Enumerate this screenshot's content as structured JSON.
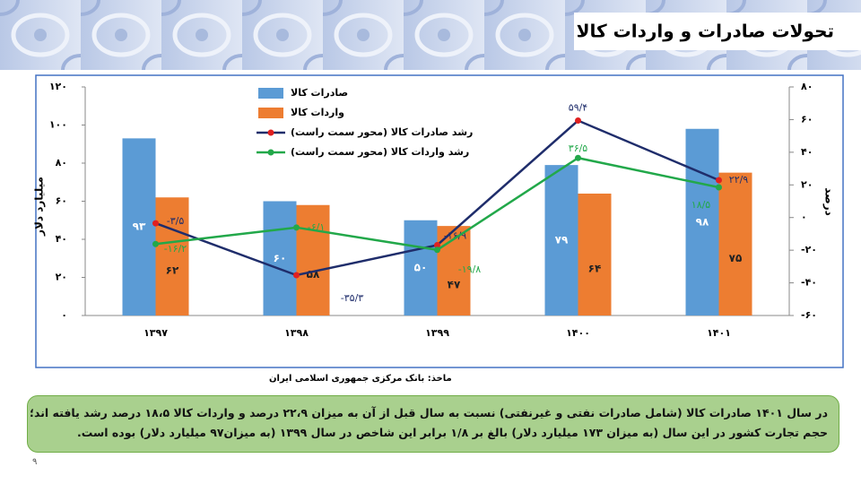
{
  "slide_title": "تحولات صادرات و واردات کالا",
  "source": "ماخذ: بانک مرکزی جمهوری اسلامی ایران",
  "summary": [
    "در سال ۱۴۰۱ صادرات کالا (شامل صادرات نفتی و غیرنفتی) نسبت به سال قبل از آن به میزان ۲۲،۹ درصد و واردات کالا ۱۸،۵ درصد رشد یافته اند؛",
    "حجم تجارت کشور در این سال (به میزان ۱۷۳ میلیارد دلار) بالغ بر ۱/۸ برابر این شاخص در سال ۱۳۹۹ (به میزان۹۷ میلیارد دلار) بوده است."
  ],
  "page_number": "۹",
  "chart_data": {
    "type": "bar-line",
    "y_label": "میلیارد دلار",
    "y2_label": "درصد",
    "categories": [
      "۱۳۹۷",
      "۱۳۹۸",
      "۱۳۹۹",
      "۱۴۰۰",
      "۱۴۰۱"
    ],
    "ylim": [
      0,
      120
    ],
    "yticks": [
      {
        "value": 0,
        "label": "٠"
      },
      {
        "value": 20,
        "label": "۲۰"
      },
      {
        "value": 40,
        "label": "۴۰"
      },
      {
        "value": 60,
        "label": "۶۰"
      },
      {
        "value": 80,
        "label": "۸۰"
      },
      {
        "value": 100,
        "label": "۱۰۰"
      },
      {
        "value": 120,
        "label": "۱۲۰"
      }
    ],
    "y2lim": [
      -60,
      80
    ],
    "y2ticks": [
      {
        "value": -60,
        "label": "-۶٠"
      },
      {
        "value": -40,
        "label": "-۴٠"
      },
      {
        "value": -20,
        "label": "-۲٠"
      },
      {
        "value": 0,
        "label": "٠"
      },
      {
        "value": 20,
        "label": "۲٠"
      },
      {
        "value": 40,
        "label": "۴٠"
      },
      {
        "value": 60,
        "label": "۶٠"
      },
      {
        "value": 80,
        "label": "۸٠"
      }
    ],
    "series": [
      {
        "name": "صادرات کالا",
        "type": "bar",
        "color": "#5b9bd5",
        "values": [
          93,
          60,
          50,
          79,
          98
        ],
        "value_labels": [
          "۹۳",
          "۶٠",
          "۵٠",
          "۷۹",
          "۹۸"
        ]
      },
      {
        "name": "واردات کالا",
        "type": "bar",
        "color": "#ed7d31",
        "values": [
          62,
          58,
          47,
          64,
          75
        ],
        "value_labels": [
          "۶۲",
          "۵۸",
          "۴۷",
          "۶۴",
          "۷۵"
        ]
      },
      {
        "name": "رشد صادرات کالا (محور سمت راست)",
        "type": "line",
        "axis": "y2",
        "color": "#1f2d6b",
        "marker_color": "#e02020",
        "values": [
          -3.5,
          -35.3,
          -16.9,
          59.4,
          22.9
        ],
        "value_labels": [
          "-۳/۵",
          "-۳۵/۳",
          "-۱۶/۹",
          "۵۹/۴",
          "۲۲/۹"
        ]
      },
      {
        "name": "رشد واردات کالا (محور سمت راست)",
        "type": "line",
        "axis": "y2",
        "color": "#22a84a",
        "marker_color": "#22a84a",
        "values": [
          -16.2,
          -6.1,
          -19.8,
          36.5,
          18.5
        ],
        "value_labels": [
          "-۱۶/۲",
          "-۶/۱",
          "-۱۹/۸",
          "۳۶/۵",
          "۱۸/۵"
        ]
      }
    ]
  }
}
